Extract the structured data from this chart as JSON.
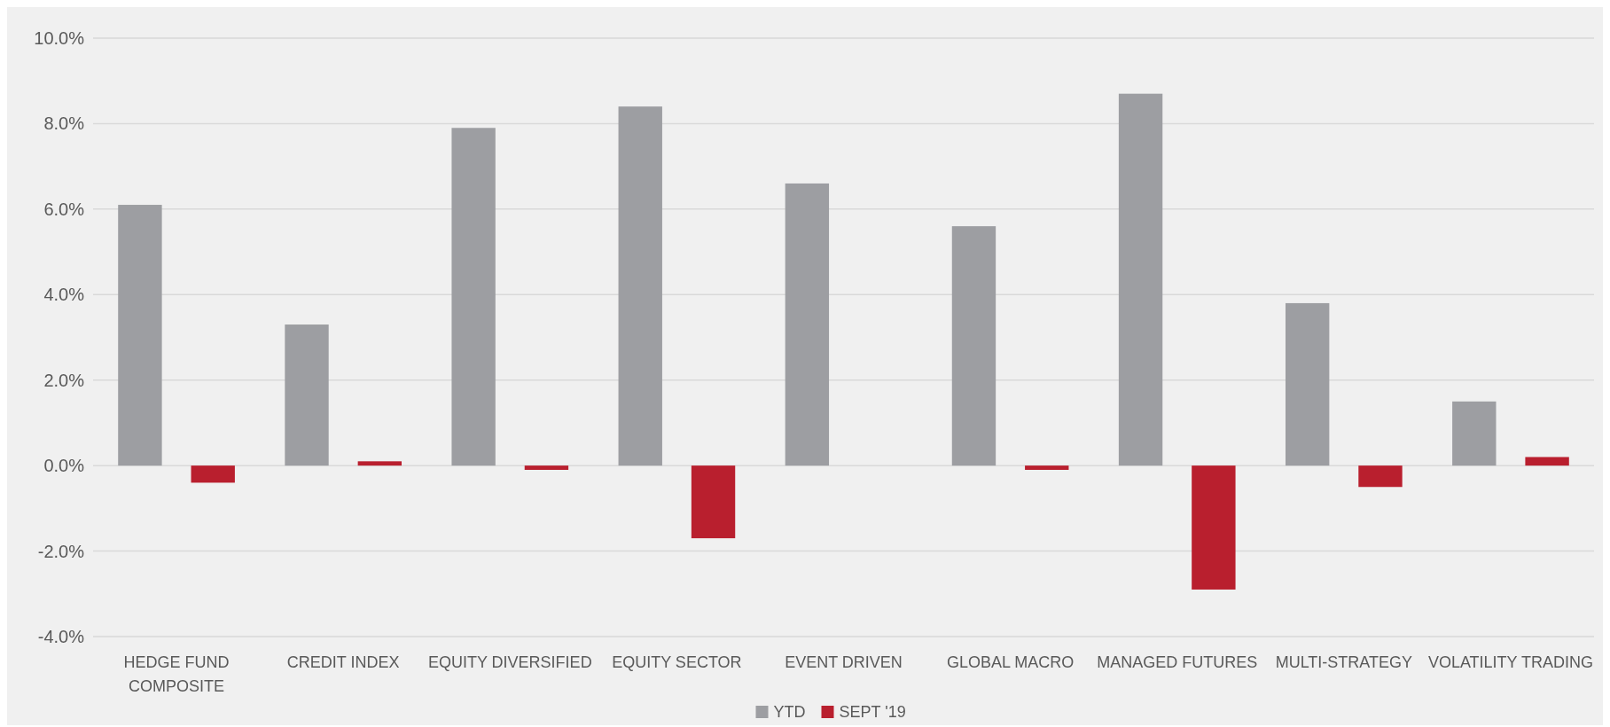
{
  "chart_data": {
    "type": "bar",
    "categories": [
      "HEDGE FUND COMPOSITE",
      "CREDIT INDEX",
      "EQUITY DIVERSIFIED",
      "EQUITY SECTOR",
      "EVENT DRIVEN",
      "GLOBAL MACRO",
      "MANAGED FUTURES",
      "MULTI-STRATEGY",
      "VOLATILITY TRADING"
    ],
    "series": [
      {
        "name": "YTD",
        "color": "#9d9ea2",
        "values": [
          6.1,
          3.3,
          7.9,
          8.4,
          6.6,
          5.6,
          8.7,
          3.8,
          1.5
        ]
      },
      {
        "name": "SEPT '19",
        "color": "#b91f2e",
        "values": [
          -0.4,
          0.1,
          -0.1,
          -1.7,
          0,
          -0.1,
          -2.9,
          -0.5,
          0.2
        ]
      }
    ],
    "ylim": [
      -4,
      10
    ],
    "yticks": [
      {
        "value": -4,
        "label": "-4.0%"
      },
      {
        "value": -2,
        "label": "-2.0%"
      },
      {
        "value": 0,
        "label": "0.0%"
      },
      {
        "value": 2,
        "label": "2.0%"
      },
      {
        "value": 4,
        "label": "4.0%"
      },
      {
        "value": 6,
        "label": "6.0%"
      },
      {
        "value": 8,
        "label": "8.0%"
      },
      {
        "value": 10,
        "label": "10.0%"
      }
    ],
    "grid": "y",
    "legend": "bottom"
  }
}
